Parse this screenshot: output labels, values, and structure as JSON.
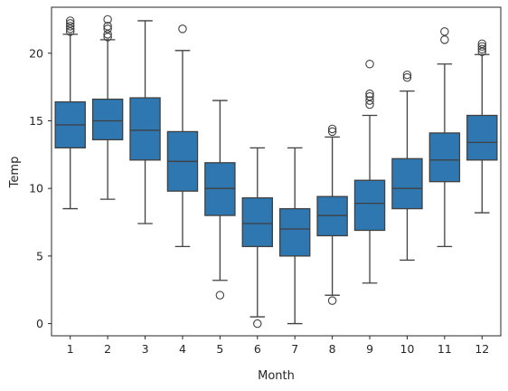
{
  "chart_data": {
    "type": "box",
    "xlabel": "Month",
    "ylabel": "Temp",
    "ylim": [
      -0.9,
      23.4
    ],
    "yticks": [
      0,
      5,
      10,
      15,
      20
    ],
    "box_color": "#2e77b0",
    "line_color": "#404040",
    "grid": false,
    "categories": [
      "1",
      "2",
      "3",
      "4",
      "5",
      "6",
      "7",
      "8",
      "9",
      "10",
      "11",
      "12"
    ],
    "boxes": [
      {
        "category": "1",
        "whisker_low": 8.5,
        "q1": 13.0,
        "median": 14.7,
        "q3": 16.4,
        "whisker_high": 21.4,
        "outliers": [
          21.6,
          21.8,
          22.0,
          22.2,
          22.4
        ]
      },
      {
        "category": "2",
        "whisker_low": 9.2,
        "q1": 13.6,
        "median": 15.0,
        "q3": 16.6,
        "whisker_high": 21.0,
        "outliers": [
          21.2,
          21.4,
          21.8,
          22.0,
          22.5
        ]
      },
      {
        "category": "3",
        "whisker_low": 7.4,
        "q1": 12.1,
        "median": 14.3,
        "q3": 16.7,
        "whisker_high": 22.4,
        "outliers": []
      },
      {
        "category": "4",
        "whisker_low": 5.7,
        "q1": 9.8,
        "median": 12.0,
        "q3": 14.2,
        "whisker_high": 20.2,
        "outliers": [
          21.8
        ]
      },
      {
        "category": "5",
        "whisker_low": 3.2,
        "q1": 8.0,
        "median": 10.0,
        "q3": 11.9,
        "whisker_high": 16.5,
        "outliers": [
          2.1
        ]
      },
      {
        "category": "6",
        "whisker_low": 0.5,
        "q1": 5.7,
        "median": 7.4,
        "q3": 9.3,
        "whisker_high": 13.0,
        "outliers": [
          0.0
        ]
      },
      {
        "category": "7",
        "whisker_low": 0.0,
        "q1": 5.0,
        "median": 7.0,
        "q3": 8.5,
        "whisker_high": 13.0,
        "outliers": []
      },
      {
        "category": "8",
        "whisker_low": 2.1,
        "q1": 6.5,
        "median": 8.0,
        "q3": 9.4,
        "whisker_high": 13.8,
        "outliers": [
          1.7,
          14.2,
          14.4
        ]
      },
      {
        "category": "9",
        "whisker_low": 3.0,
        "q1": 6.9,
        "median": 8.9,
        "q3": 10.6,
        "whisker_high": 15.4,
        "outliers": [
          16.2,
          16.5,
          16.8,
          17.0,
          19.2
        ]
      },
      {
        "category": "10",
        "whisker_low": 4.7,
        "q1": 8.5,
        "median": 10.0,
        "q3": 12.2,
        "whisker_high": 17.2,
        "outliers": [
          18.2,
          18.4
        ]
      },
      {
        "category": "11",
        "whisker_low": 5.7,
        "q1": 10.5,
        "median": 12.1,
        "q3": 14.1,
        "whisker_high": 19.2,
        "outliers": [
          21.0,
          21.6
        ]
      },
      {
        "category": "12",
        "whisker_low": 8.2,
        "q1": 12.1,
        "median": 13.4,
        "q3": 15.4,
        "whisker_high": 19.9,
        "outliers": [
          20.1,
          20.3,
          20.5,
          20.7
        ]
      }
    ]
  }
}
